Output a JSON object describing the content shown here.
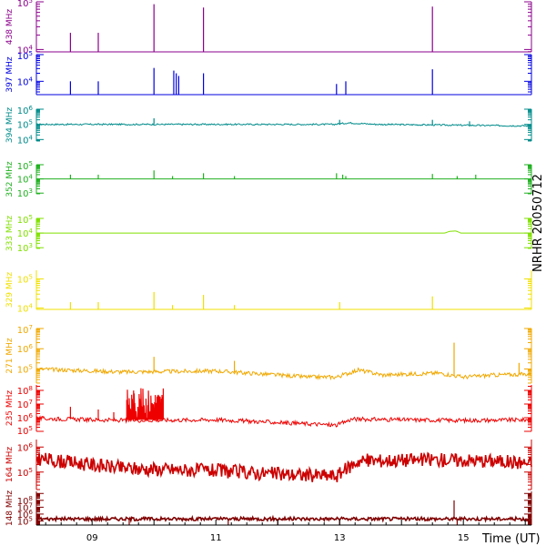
{
  "chart_data": {
    "type": "line",
    "side_label": "NRHR 20050712",
    "x_axis_label": "Time (UT)",
    "x_tick_labels": [
      "09",
      "11",
      "13",
      "15"
    ],
    "x_range_hours": [
      8.1,
      16.1
    ],
    "x_ticks_hours": [
      9,
      11,
      13,
      15
    ],
    "y_scale": "log",
    "panels": [
      {
        "name": "438 MHz",
        "color": "#8b008b",
        "tick_labels": [
          "10^5",
          "10^4"
        ],
        "ylim_log": [
          3.95,
          5.0
        ],
        "baseline_log": 3.95,
        "noise_log": 0.0,
        "smooth_segments": [],
        "spikes": [
          {
            "t": 8.65,
            "v": 4.35
          },
          {
            "t": 9.1,
            "v": 4.35
          },
          {
            "t": 10.0,
            "v": 4.95
          },
          {
            "t": 10.8,
            "v": 4.88
          },
          {
            "t": 14.5,
            "v": 4.9
          }
        ]
      },
      {
        "name": "397 MHz",
        "color": "#0000e0",
        "tick_labels": [
          "10^5",
          "10^4"
        ],
        "ylim_log": [
          3.5,
          5.0
        ],
        "baseline_log": 3.5,
        "noise_log": 0.0,
        "smooth_segments": [],
        "spikes": [
          {
            "t": 8.65,
            "v": 4.0
          },
          {
            "t": 9.1,
            "v": 4.0
          },
          {
            "t": 10.0,
            "v": 4.5
          },
          {
            "t": 10.32,
            "v": 4.4
          },
          {
            "t": 10.36,
            "v": 4.3
          },
          {
            "t": 10.4,
            "v": 4.2
          },
          {
            "t": 10.8,
            "v": 4.3
          },
          {
            "t": 12.95,
            "v": 3.9
          },
          {
            "t": 13.1,
            "v": 4.0
          },
          {
            "t": 14.5,
            "v": 4.45
          }
        ]
      },
      {
        "name": "394 MHz",
        "color": "#008b8b",
        "tick_labels": [
          "10^6",
          "10^5",
          "10^4"
        ],
        "ylim_log": [
          3.9,
          6.0
        ],
        "baseline_log": 5.0,
        "noise_log": 0.05,
        "smooth_segments": [
          {
            "t": 8.1,
            "v": 5.0
          },
          {
            "t": 12.9,
            "v": 5.0
          },
          {
            "t": 13.15,
            "v": 5.1
          },
          {
            "t": 13.6,
            "v": 5.0
          },
          {
            "t": 16.1,
            "v": 4.9
          }
        ],
        "spikes": [
          {
            "t": 10.0,
            "v": 5.4
          },
          {
            "t": 13.0,
            "v": 5.3
          },
          {
            "t": 14.5,
            "v": 5.3
          },
          {
            "t": 15.1,
            "v": 5.2
          }
        ]
      },
      {
        "name": "352 MHz",
        "color": "#20b020",
        "tick_labels": [
          "10^5",
          "10^4",
          "10^3"
        ],
        "ylim_log": [
          2.95,
          5.0
        ],
        "baseline_log": 4.0,
        "noise_log": 0.0,
        "smooth_segments": [],
        "spikes": [
          {
            "t": 8.65,
            "v": 4.3
          },
          {
            "t": 9.1,
            "v": 4.3
          },
          {
            "t": 10.0,
            "v": 4.6
          },
          {
            "t": 10.3,
            "v": 4.2
          },
          {
            "t": 10.8,
            "v": 4.4
          },
          {
            "t": 11.3,
            "v": 4.2
          },
          {
            "t": 12.95,
            "v": 4.4
          },
          {
            "t": 13.05,
            "v": 4.3
          },
          {
            "t": 13.1,
            "v": 4.2
          },
          {
            "t": 14.5,
            "v": 4.35
          },
          {
            "t": 14.9,
            "v": 4.2
          },
          {
            "t": 15.2,
            "v": 4.3
          }
        ]
      },
      {
        "name": "333 MHz",
        "color": "#80e000",
        "tick_labels": [
          "10^5",
          "10^4",
          "10^3"
        ],
        "ylim_log": [
          2.95,
          5.0
        ],
        "baseline_log": 4.0,
        "noise_log": 0.0,
        "smooth_segments": [
          {
            "t": 8.1,
            "v": 4.0
          },
          {
            "t": 14.7,
            "v": 4.0
          },
          {
            "t": 14.78,
            "v": 4.12
          },
          {
            "t": 14.88,
            "v": 4.14
          },
          {
            "t": 14.96,
            "v": 4.0
          },
          {
            "t": 16.1,
            "v": 4.0
          }
        ],
        "spikes": []
      },
      {
        "name": "329 MHz",
        "color": "#f0e000",
        "tick_labels": [
          "10^5",
          "10^4"
        ],
        "ylim_log": [
          3.95,
          5.3
        ],
        "baseline_log": 3.95,
        "noise_log": 0.0,
        "smooth_segments": [],
        "spikes": [
          {
            "t": 8.65,
            "v": 4.2
          },
          {
            "t": 9.1,
            "v": 4.2
          },
          {
            "t": 10.0,
            "v": 4.55
          },
          {
            "t": 10.3,
            "v": 4.1
          },
          {
            "t": 10.8,
            "v": 4.45
          },
          {
            "t": 11.3,
            "v": 4.1
          },
          {
            "t": 13.0,
            "v": 4.2
          },
          {
            "t": 14.5,
            "v": 4.4
          }
        ]
      },
      {
        "name": "271 MHz",
        "color": "#f0a800",
        "tick_labels": [
          "10^7",
          "10^6",
          "10^5"
        ],
        "ylim_log": [
          4.3,
          7.0
        ],
        "baseline_log": 4.9,
        "noise_log": 0.1,
        "smooth_segments": [
          {
            "t": 8.1,
            "v": 5.0
          },
          {
            "t": 9.5,
            "v": 4.85
          },
          {
            "t": 11.0,
            "v": 4.9
          },
          {
            "t": 12.5,
            "v": 4.6
          },
          {
            "t": 12.95,
            "v": 4.6
          },
          {
            "t": 13.3,
            "v": 4.95
          },
          {
            "t": 13.7,
            "v": 4.7
          },
          {
            "t": 14.6,
            "v": 4.8
          },
          {
            "t": 15.0,
            "v": 4.6
          },
          {
            "t": 15.5,
            "v": 4.7
          },
          {
            "t": 16.1,
            "v": 4.75
          }
        ],
        "spikes": [
          {
            "t": 10.0,
            "v": 5.6
          },
          {
            "t": 11.3,
            "v": 5.4
          },
          {
            "t": 14.85,
            "v": 6.3
          },
          {
            "t": 15.9,
            "v": 5.3
          }
        ]
      },
      {
        "name": "235 MHz",
        "color": "#ee0000",
        "tick_labels": [
          "10^8",
          "10^7",
          "10^6",
          "10^5"
        ],
        "ylim_log": [
          5.0,
          8.4
        ],
        "baseline_log": 5.85,
        "noise_log": 0.15,
        "smooth_segments": [
          {
            "t": 8.1,
            "v": 5.95
          },
          {
            "t": 9.5,
            "v": 5.8
          },
          {
            "t": 11.0,
            "v": 5.85
          },
          {
            "t": 12.5,
            "v": 5.55
          },
          {
            "t": 12.95,
            "v": 5.45
          },
          {
            "t": 13.2,
            "v": 5.9
          },
          {
            "t": 14.0,
            "v": 5.85
          },
          {
            "t": 15.0,
            "v": 5.8
          },
          {
            "t": 16.1,
            "v": 5.85
          }
        ],
        "spikes": [
          {
            "t": 8.65,
            "v": 6.8
          },
          {
            "t": 9.1,
            "v": 6.6
          },
          {
            "t": 9.35,
            "v": 6.4
          }
        ],
        "burst_regions": [
          {
            "t0": 9.55,
            "t1": 10.15,
            "top": 8.2
          }
        ]
      },
      {
        "name": "164 MHz",
        "color": "#cc0000",
        "tick_labels": [
          "10^6",
          "10^5"
        ],
        "ylim_log": [
          4.3,
          6.3
        ],
        "baseline_log": 5.2,
        "noise_log": 0.28,
        "smooth_segments": [
          {
            "t": 8.1,
            "v": 5.55
          },
          {
            "t": 9.5,
            "v": 5.15
          },
          {
            "t": 11.0,
            "v": 5.05
          },
          {
            "t": 12.2,
            "v": 4.9
          },
          {
            "t": 12.95,
            "v": 4.85
          },
          {
            "t": 13.3,
            "v": 5.45
          },
          {
            "t": 14.5,
            "v": 5.5
          },
          {
            "t": 15.5,
            "v": 5.45
          },
          {
            "t": 16.1,
            "v": 5.35
          }
        ],
        "spikes": []
      },
      {
        "name": "148 MHz",
        "color": "#800000",
        "tick_labels": [
          "10^8",
          "10^7",
          "10^6",
          "10^5"
        ],
        "ylim_log": [
          4.4,
          9.3
        ],
        "baseline_log": 5.3,
        "noise_log": 0.25,
        "smooth_segments": [],
        "spikes": [
          {
            "t": 14.85,
            "v": 8.0
          }
        ],
        "down_spikes": [
          {
            "t": 9.6,
            "v": 4.4
          },
          {
            "t": 11.2,
            "v": 4.4
          },
          {
            "t": 12.0,
            "v": 4.4
          },
          {
            "t": 13.0,
            "v": 4.4
          },
          {
            "t": 14.9,
            "v": 4.4
          }
        ]
      }
    ]
  }
}
